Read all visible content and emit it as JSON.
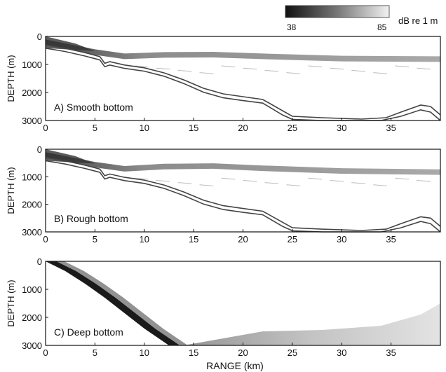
{
  "colorbar": {
    "min_label": "38",
    "max_label": "85",
    "unit_label": "dB re 1 m",
    "color_low": "#111111",
    "color_high": "#f2f2f2"
  },
  "shared_xlabel": "RANGE (km)",
  "chart_data": [
    {
      "type": "heatmap",
      "panel_label": "A) Smooth bottom",
      "ylabel": "DEPTH (m)",
      "xlim": [
        0,
        40
      ],
      "ylim": [
        3000,
        0
      ],
      "x_ticks": [
        "0",
        "5",
        "10",
        "15",
        "20",
        "25",
        "30",
        "35"
      ],
      "y_ticks": [
        "0",
        "1000",
        "2000",
        "3000"
      ],
      "bottom_profile_upper": [
        [
          0,
          300
        ],
        [
          2,
          420
        ],
        [
          4,
          580
        ],
        [
          5.5,
          720
        ],
        [
          6,
          960
        ],
        [
          6.5,
          900
        ],
        [
          8,
          1020
        ],
        [
          10,
          1120
        ],
        [
          12,
          1300
        ],
        [
          14,
          1550
        ],
        [
          16,
          1850
        ],
        [
          18,
          2050
        ],
        [
          20,
          2150
        ],
        [
          22,
          2250
        ],
        [
          24,
          2650
        ],
        [
          25,
          2850
        ],
        [
          28,
          2900
        ],
        [
          32,
          2950
        ],
        [
          34.5,
          2900
        ],
        [
          36,
          2700
        ],
        [
          38,
          2450
        ],
        [
          39,
          2500
        ],
        [
          40,
          2800
        ]
      ],
      "bottom_profile_lower": [
        [
          0,
          420
        ],
        [
          2,
          540
        ],
        [
          4,
          700
        ],
        [
          5.5,
          840
        ],
        [
          6,
          1080
        ],
        [
          6.5,
          1020
        ],
        [
          8,
          1140
        ],
        [
          10,
          1240
        ],
        [
          12,
          1420
        ],
        [
          14,
          1680
        ],
        [
          16,
          1990
        ],
        [
          18,
          2190
        ],
        [
          20,
          2290
        ],
        [
          22,
          2380
        ],
        [
          24,
          2800
        ],
        [
          25,
          2960
        ],
        [
          28,
          3000
        ],
        [
          34,
          3000
        ],
        [
          36,
          2850
        ],
        [
          38,
          2620
        ],
        [
          39,
          2700
        ],
        [
          40,
          3000
        ]
      ],
      "scattering_layer": [
        [
          0,
          200
        ],
        [
          5,
          550
        ],
        [
          8,
          700
        ],
        [
          12,
          650
        ],
        [
          17,
          640
        ],
        [
          22,
          700
        ],
        [
          30,
          780
        ],
        [
          40,
          800
        ]
      ]
    },
    {
      "type": "heatmap",
      "panel_label": "B) Rough bottom",
      "ylabel": "DEPTH (m)",
      "xlim": [
        0,
        40
      ],
      "ylim": [
        3000,
        0
      ],
      "x_ticks": [
        "0",
        "5",
        "10",
        "15",
        "20",
        "25",
        "30",
        "35"
      ],
      "y_ticks": [
        "0",
        "1000",
        "2000",
        "3000"
      ],
      "bottom_profile_upper": [
        [
          0,
          300
        ],
        [
          2,
          420
        ],
        [
          4,
          580
        ],
        [
          5.5,
          720
        ],
        [
          6,
          960
        ],
        [
          6.5,
          900
        ],
        [
          8,
          1020
        ],
        [
          10,
          1120
        ],
        [
          12,
          1300
        ],
        [
          14,
          1550
        ],
        [
          16,
          1850
        ],
        [
          18,
          2050
        ],
        [
          20,
          2150
        ],
        [
          22,
          2250
        ],
        [
          24,
          2650
        ],
        [
          25,
          2850
        ],
        [
          28,
          2900
        ],
        [
          32,
          2950
        ],
        [
          34.5,
          2900
        ],
        [
          36,
          2700
        ],
        [
          38,
          2450
        ],
        [
          39,
          2500
        ],
        [
          40,
          2800
        ]
      ],
      "bottom_profile_lower": [
        [
          0,
          420
        ],
        [
          2,
          540
        ],
        [
          4,
          700
        ],
        [
          5.5,
          840
        ],
        [
          6,
          1080
        ],
        [
          6.5,
          1020
        ],
        [
          8,
          1140
        ],
        [
          10,
          1240
        ],
        [
          12,
          1420
        ],
        [
          14,
          1680
        ],
        [
          16,
          1990
        ],
        [
          18,
          2190
        ],
        [
          20,
          2290
        ],
        [
          22,
          2380
        ],
        [
          24,
          2800
        ],
        [
          25,
          2960
        ],
        [
          28,
          3000
        ],
        [
          34,
          3000
        ],
        [
          36,
          2850
        ],
        [
          38,
          2620
        ],
        [
          39,
          2700
        ],
        [
          40,
          3000
        ]
      ],
      "scattering_layer": [
        [
          0,
          200
        ],
        [
          5,
          550
        ],
        [
          8,
          700
        ],
        [
          12,
          620
        ],
        [
          17,
          600
        ],
        [
          22,
          680
        ],
        [
          30,
          780
        ],
        [
          40,
          820
        ]
      ]
    },
    {
      "type": "heatmap",
      "panel_label": "C) Deep bottom",
      "ylabel": "DEPTH (m)",
      "xlabel": "RANGE (km)",
      "xlim": [
        0,
        40
      ],
      "ylim": [
        3000,
        0
      ],
      "x_ticks": [
        "0",
        "5",
        "10",
        "15",
        "20",
        "25",
        "30",
        "35"
      ],
      "y_ticks": [
        "0",
        "1000",
        "2000",
        "3000"
      ],
      "direct_beam": [
        [
          0,
          0
        ],
        [
          2,
          350
        ],
        [
          4,
          800
        ],
        [
          6,
          1300
        ],
        [
          8,
          1850
        ],
        [
          10,
          2400
        ],
        [
          12.5,
          3000
        ]
      ],
      "returning_arc": [
        [
          14,
          3000
        ],
        [
          18,
          2750
        ],
        [
          22,
          2500
        ],
        [
          28,
          2450
        ],
        [
          34,
          2300
        ],
        [
          38,
          1900
        ],
        [
          40,
          1500
        ]
      ]
    }
  ]
}
